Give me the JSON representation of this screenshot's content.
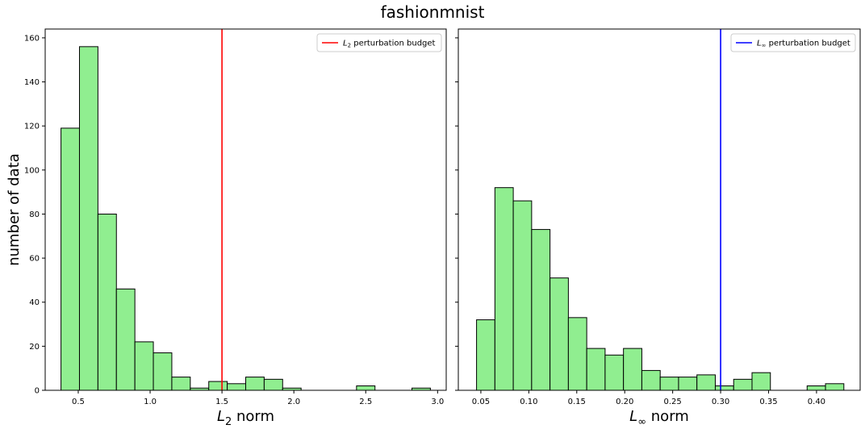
{
  "figure": {
    "title": "fashionmnist",
    "shared_ylabel": "number of data"
  },
  "chart_data": [
    {
      "type": "histogram",
      "xlabel_base": "L",
      "xlabel_sub": "2",
      "xlabel_rest": " norm",
      "ylabel": "number of data",
      "xlim": [
        0.27,
        3.06
      ],
      "ylim": [
        0,
        164
      ],
      "xticks": [
        0.5,
        1.0,
        1.5,
        2.0,
        2.5,
        3.0
      ],
      "xtick_labels": [
        "0.5",
        "1.0",
        "1.5",
        "2.0",
        "2.5",
        "3.0"
      ],
      "yticks": [
        0,
        20,
        40,
        60,
        80,
        100,
        120,
        140,
        160
      ],
      "ytick_labels": [
        "0",
        "20",
        "40",
        "60",
        "80",
        "100",
        "120",
        "140",
        "160"
      ],
      "bin_start": 0.38,
      "bin_width": 0.1285,
      "counts": [
        119,
        156,
        80,
        46,
        22,
        17,
        6,
        1,
        4,
        3,
        6,
        5,
        1,
        0,
        0,
        0,
        2,
        0,
        0,
        1
      ],
      "bar_color": "#90ee90",
      "bar_edge_color": "#000000",
      "vline": {
        "x": 1.5,
        "color": "#ff0000"
      },
      "legend": {
        "label_base": "L",
        "label_sub": "2",
        "label_rest": " perturbation budget",
        "position": "upper-right"
      },
      "grid": false
    },
    {
      "type": "histogram",
      "xlabel_base": "L",
      "xlabel_sub": "∞",
      "xlabel_rest": " norm",
      "xlim": [
        0.0265,
        0.4455
      ],
      "ylim": [
        0,
        164
      ],
      "xticks": [
        0.05,
        0.1,
        0.15,
        0.2,
        0.25,
        0.3,
        0.35,
        0.4
      ],
      "xtick_labels": [
        "0.05",
        "0.10",
        "0.15",
        "0.20",
        "0.25",
        "0.30",
        "0.35",
        "0.40"
      ],
      "yticks": [
        0,
        20,
        40,
        60,
        80,
        100,
        120,
        140,
        160
      ],
      "bin_start": 0.0455,
      "bin_width": 0.01915,
      "counts": [
        32,
        92,
        86,
        73,
        51,
        33,
        19,
        16,
        19,
        9,
        6,
        6,
        7,
        2,
        5,
        8,
        0,
        0,
        2,
        3
      ],
      "bar_color": "#90ee90",
      "bar_edge_color": "#000000",
      "vline": {
        "x": 0.3,
        "color": "#0000ff"
      },
      "legend": {
        "label_base": "L",
        "label_sub": "∞",
        "label_rest": " perturbation budget",
        "position": "upper-right"
      },
      "grid": false
    }
  ]
}
